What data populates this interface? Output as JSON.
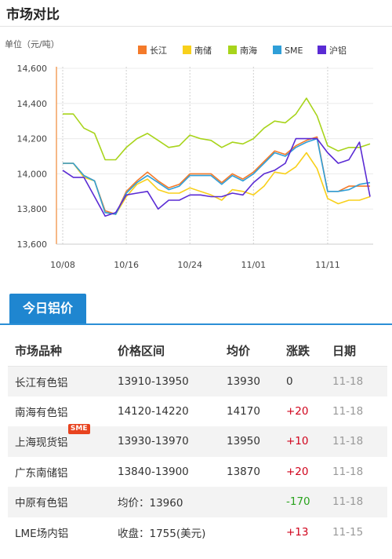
{
  "header": {
    "title": "市场对比"
  },
  "chart_data": {
    "type": "line",
    "ylabel": "单位（元/吨）",
    "ylim": [
      13600,
      14600
    ],
    "yticks": [
      "14,600",
      "14,400",
      "14,200",
      "14,000",
      "13,800",
      "13,600"
    ],
    "yticks_values": [
      14600,
      14400,
      14200,
      14000,
      13800,
      13600
    ],
    "xtick_labels": [
      "10/08",
      "10/16",
      "10/24",
      "11/01",
      "11/11"
    ],
    "xtick_index": [
      0,
      6,
      12,
      18,
      25
    ],
    "grid": true,
    "legend_position": "top-right",
    "series": [
      {
        "name": "长江",
        "color": "#f47a2a",
        "values": [
          14060,
          14060,
          13990,
          13960,
          13790,
          13770,
          13900,
          13960,
          14010,
          13960,
          13920,
          13940,
          14000,
          14000,
          14000,
          13950,
          14000,
          13970,
          14010,
          14070,
          14130,
          14110,
          14160,
          14190,
          14210,
          13900,
          13900,
          13930,
          13930,
          13930
        ]
      },
      {
        "name": "南储",
        "color": "#f8d01b",
        "values": [
          14060,
          14060,
          13980,
          13960,
          13780,
          13770,
          13870,
          13940,
          13970,
          13910,
          13890,
          13890,
          13920,
          13900,
          13880,
          13850,
          13910,
          13900,
          13880,
          13930,
          14010,
          14000,
          14040,
          14120,
          14030,
          13860,
          13830,
          13850,
          13850,
          13870
        ]
      },
      {
        "name": "南海",
        "color": "#a8d41b",
        "values": [
          14340,
          14340,
          14260,
          14230,
          14080,
          14080,
          14150,
          14200,
          14230,
          14190,
          14150,
          14160,
          14220,
          14200,
          14190,
          14150,
          14180,
          14170,
          14200,
          14260,
          14300,
          14290,
          14340,
          14430,
          14330,
          14160,
          14130,
          14150,
          14150,
          14170
        ]
      },
      {
        "name": "SME",
        "color": "#2f9fd8",
        "values": [
          14060,
          14060,
          13990,
          13960,
          13780,
          13770,
          13890,
          13950,
          13990,
          13950,
          13910,
          13930,
          13990,
          13990,
          13990,
          13940,
          13990,
          13960,
          14000,
          14060,
          14120,
          14100,
          14150,
          14180,
          14200,
          13900,
          13900,
          13910,
          13940,
          13950
        ]
      },
      {
        "name": "沪铝",
        "color": "#5a2bd4",
        "values": [
          14020,
          13980,
          13980,
          13870,
          13760,
          13780,
          13880,
          13890,
          13900,
          13800,
          13850,
          13850,
          13880,
          13880,
          13870,
          13870,
          13890,
          13880,
          13950,
          14000,
          14020,
          14060,
          14200,
          14200,
          14200,
          14120,
          14060,
          14080,
          14180,
          13870
        ]
      }
    ]
  },
  "tabs": {
    "today": "今日铝价"
  },
  "table": {
    "headers": [
      "市场品种",
      "价格区间",
      "均价",
      "涨跌",
      "日期"
    ],
    "rows": [
      {
        "name": "长江有色铝",
        "range": "13910-13950",
        "avg": "13930",
        "change": "0",
        "dir": "flat",
        "date": "11-18"
      },
      {
        "name": "南海有色铝",
        "range": "14120-14220",
        "avg": "14170",
        "change": "+20",
        "dir": "up",
        "date": "11-18"
      },
      {
        "name": "上海现货铝",
        "badge": "SME",
        "range": "13930-13970",
        "avg": "13950",
        "change": "+10",
        "dir": "up",
        "date": "11-18"
      },
      {
        "name": "广东南储铝",
        "range": "13840-13900",
        "avg": "13870",
        "change": "+20",
        "dir": "up",
        "date": "11-18"
      },
      {
        "name": "中原有色铝",
        "range": "均价：13960",
        "avg": "",
        "change": "-170",
        "dir": "down",
        "date": "11-18"
      },
      {
        "name": "LME场内铝",
        "range": "收盘：1755(美元)",
        "avg": "",
        "change": "+13",
        "dir": "up",
        "date": "11-15"
      }
    ]
  }
}
